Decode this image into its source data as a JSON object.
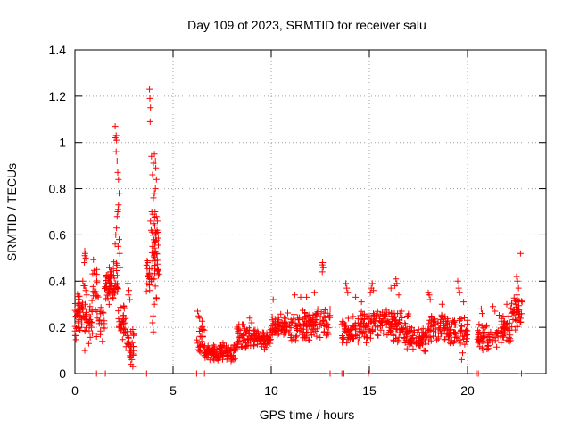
{
  "chart_data": {
    "type": "scatter",
    "title": "Day 109 of 2023, SRMTID for receiver salu",
    "xlabel": "GPS time / hours",
    "ylabel": "SRMTID / TECUs",
    "xlim": [
      0,
      24
    ],
    "ylim": [
      0,
      1.4
    ],
    "x_ticks": [
      0,
      5,
      10,
      15,
      20
    ],
    "x_tick_labels": [
      "0",
      "5",
      "10",
      "15",
      "20"
    ],
    "y_ticks": [
      0,
      0.2,
      0.4,
      0.6,
      0.8,
      1.0,
      1.2,
      1.4
    ],
    "y_tick_labels": [
      "0",
      "0.2",
      "0.4",
      "0.6",
      "0.8",
      "1",
      "1.2",
      "1.4"
    ],
    "grid": true,
    "marker": "+",
    "color": "#ff0000",
    "bands": [
      {
        "start": 0.0,
        "end": 0.3,
        "low": 0.14,
        "high": 0.36,
        "n": 35
      },
      {
        "start": 0.3,
        "end": 0.9,
        "low": 0.15,
        "high": 0.33,
        "n": 45
      },
      {
        "start": 0.9,
        "end": 1.2,
        "low": 0.18,
        "high": 0.5,
        "n": 20
      },
      {
        "start": 1.2,
        "end": 1.5,
        "low": 0.15,
        "high": 0.3,
        "n": 15
      },
      {
        "start": 1.5,
        "end": 1.8,
        "low": 0.28,
        "high": 0.46,
        "n": 30
      },
      {
        "start": 1.8,
        "end": 2.2,
        "low": 0.28,
        "high": 0.5,
        "n": 30
      },
      {
        "start": 2.2,
        "end": 2.6,
        "low": 0.13,
        "high": 0.3,
        "n": 30
      },
      {
        "start": 2.6,
        "end": 3.0,
        "low": 0.05,
        "high": 0.2,
        "n": 30
      },
      {
        "start": 3.6,
        "end": 3.9,
        "low": 0.3,
        "high": 0.5,
        "n": 20
      },
      {
        "start": 3.9,
        "end": 4.3,
        "low": 0.3,
        "high": 0.75,
        "n": 40
      },
      {
        "start": 6.2,
        "end": 6.6,
        "low": 0.07,
        "high": 0.24,
        "n": 25
      },
      {
        "start": 6.6,
        "end": 7.4,
        "low": 0.05,
        "high": 0.13,
        "n": 60
      },
      {
        "start": 7.4,
        "end": 8.2,
        "low": 0.04,
        "high": 0.14,
        "n": 55
      },
      {
        "start": 8.2,
        "end": 8.9,
        "low": 0.1,
        "high": 0.22,
        "n": 50
      },
      {
        "start": 8.9,
        "end": 10.0,
        "low": 0.1,
        "high": 0.2,
        "n": 70
      },
      {
        "start": 10.0,
        "end": 11.0,
        "low": 0.15,
        "high": 0.27,
        "n": 60
      },
      {
        "start": 11.0,
        "end": 12.0,
        "low": 0.13,
        "high": 0.28,
        "n": 60
      },
      {
        "start": 12.0,
        "end": 13.0,
        "low": 0.14,
        "high": 0.3,
        "n": 60
      },
      {
        "start": 13.6,
        "end": 14.4,
        "low": 0.12,
        "high": 0.26,
        "n": 50
      },
      {
        "start": 14.4,
        "end": 15.2,
        "low": 0.12,
        "high": 0.28,
        "n": 50
      },
      {
        "start": 15.2,
        "end": 16.2,
        "low": 0.15,
        "high": 0.3,
        "n": 60
      },
      {
        "start": 16.2,
        "end": 17.0,
        "low": 0.1,
        "high": 0.28,
        "n": 55
      },
      {
        "start": 17.0,
        "end": 18.0,
        "low": 0.08,
        "high": 0.22,
        "n": 60
      },
      {
        "start": 18.0,
        "end": 19.0,
        "low": 0.12,
        "high": 0.28,
        "n": 60
      },
      {
        "start": 19.0,
        "end": 20.0,
        "low": 0.1,
        "high": 0.26,
        "n": 60
      },
      {
        "start": 20.5,
        "end": 21.5,
        "low": 0.09,
        "high": 0.22,
        "n": 55
      },
      {
        "start": 21.5,
        "end": 22.2,
        "low": 0.12,
        "high": 0.26,
        "n": 45
      },
      {
        "start": 22.2,
        "end": 22.8,
        "low": 0.18,
        "high": 0.33,
        "n": 40
      }
    ],
    "peaks": [
      {
        "x": 0.4,
        "y": 0.4
      },
      {
        "x": 0.5,
        "y": 0.38
      },
      {
        "x": 0.55,
        "y": 0.36
      },
      {
        "x": 0.45,
        "y": 0.38
      },
      {
        "x": 0.6,
        "y": 0.34
      },
      {
        "x": 0.5,
        "y": 0.1
      },
      {
        "x": 0.7,
        "y": 0.13
      },
      {
        "x": 1.1,
        "y": 0.16
      },
      {
        "x": 1.4,
        "y": 0.14
      },
      {
        "x": 0.5,
        "y": 0.51
      },
      {
        "x": 0.52,
        "y": 0.52
      },
      {
        "x": 0.55,
        "y": 0.5
      },
      {
        "x": 0.48,
        "y": 0.48
      },
      {
        "x": 0.5,
        "y": 0.53
      },
      {
        "x": 1.7,
        "y": 0.41
      },
      {
        "x": 1.75,
        "y": 0.46
      },
      {
        "x": 1.8,
        "y": 0.44
      },
      {
        "x": 1.85,
        "y": 0.42
      },
      {
        "x": 1.9,
        "y": 0.38
      },
      {
        "x": 1.95,
        "y": 0.35
      },
      {
        "x": 2.05,
        "y": 1.07
      },
      {
        "x": 2.05,
        "y": 1.02
      },
      {
        "x": 2.1,
        "y": 1.03
      },
      {
        "x": 2.12,
        "y": 1.01
      },
      {
        "x": 2.1,
        "y": 0.96
      },
      {
        "x": 2.15,
        "y": 0.92
      },
      {
        "x": 2.18,
        "y": 0.87
      },
      {
        "x": 2.22,
        "y": 0.84
      },
      {
        "x": 2.25,
        "y": 0.78
      },
      {
        "x": 2.22,
        "y": 0.73
      },
      {
        "x": 2.2,
        "y": 0.71
      },
      {
        "x": 2.18,
        "y": 0.7
      },
      {
        "x": 2.15,
        "y": 0.68
      },
      {
        "x": 2.12,
        "y": 0.63
      },
      {
        "x": 2.08,
        "y": 0.6
      },
      {
        "x": 2.05,
        "y": 0.56
      },
      {
        "x": 2.2,
        "y": 0.55
      },
      {
        "x": 2.25,
        "y": 0.58
      },
      {
        "x": 2.28,
        "y": 0.52
      },
      {
        "x": 2.3,
        "y": 0.46
      },
      {
        "x": 2.7,
        "y": 0.39
      },
      {
        "x": 2.75,
        "y": 0.36
      },
      {
        "x": 2.72,
        "y": 0.34
      },
      {
        "x": 2.8,
        "y": 0.32
      },
      {
        "x": 2.9,
        "y": 0.06
      },
      {
        "x": 2.95,
        "y": 0.03
      },
      {
        "x": 2.85,
        "y": 0.04
      },
      {
        "x": 3.8,
        "y": 1.23
      },
      {
        "x": 3.82,
        "y": 1.19
      },
      {
        "x": 3.85,
        "y": 1.15
      },
      {
        "x": 3.83,
        "y": 1.09
      },
      {
        "x": 3.9,
        "y": 0.94
      },
      {
        "x": 3.95,
        "y": 0.86
      },
      {
        "x": 4.0,
        "y": 0.91
      },
      {
        "x": 4.05,
        "y": 0.95
      },
      {
        "x": 4.1,
        "y": 0.92
      },
      {
        "x": 4.12,
        "y": 0.89
      },
      {
        "x": 4.15,
        "y": 0.84
      },
      {
        "x": 4.1,
        "y": 0.8
      },
      {
        "x": 4.05,
        "y": 0.78
      },
      {
        "x": 4.0,
        "y": 0.76
      },
      {
        "x": 4.08,
        "y": 0.7
      },
      {
        "x": 4.15,
        "y": 0.68
      },
      {
        "x": 4.2,
        "y": 0.66
      },
      {
        "x": 4.18,
        "y": 0.62
      },
      {
        "x": 4.1,
        "y": 0.6
      },
      {
        "x": 4.05,
        "y": 0.57
      },
      {
        "x": 3.95,
        "y": 0.55
      },
      {
        "x": 3.88,
        "y": 0.62
      },
      {
        "x": 3.85,
        "y": 0.66
      },
      {
        "x": 3.92,
        "y": 0.7
      },
      {
        "x": 4.15,
        "y": 0.52
      },
      {
        "x": 4.2,
        "y": 0.49
      },
      {
        "x": 4.25,
        "y": 0.45
      },
      {
        "x": 3.95,
        "y": 0.22
      },
      {
        "x": 4.0,
        "y": 0.18
      },
      {
        "x": 3.98,
        "y": 0.25
      },
      {
        "x": 4.05,
        "y": 0.3
      },
      {
        "x": 3.7,
        "y": 0.48
      },
      {
        "x": 6.25,
        "y": 0.27
      },
      {
        "x": 6.3,
        "y": 0.25
      },
      {
        "x": 6.35,
        "y": 0.24
      },
      {
        "x": 8.9,
        "y": 0.24
      },
      {
        "x": 9.0,
        "y": 0.22
      },
      {
        "x": 10.1,
        "y": 0.32
      },
      {
        "x": 11.2,
        "y": 0.34
      },
      {
        "x": 11.5,
        "y": 0.33
      },
      {
        "x": 11.8,
        "y": 0.33
      },
      {
        "x": 12.2,
        "y": 0.35
      },
      {
        "x": 12.6,
        "y": 0.47
      },
      {
        "x": 12.62,
        "y": 0.48
      },
      {
        "x": 12.65,
        "y": 0.46
      },
      {
        "x": 12.6,
        "y": 0.44
      },
      {
        "x": 13.8,
        "y": 0.39
      },
      {
        "x": 13.85,
        "y": 0.37
      },
      {
        "x": 13.9,
        "y": 0.35
      },
      {
        "x": 14.3,
        "y": 0.33
      },
      {
        "x": 14.6,
        "y": 0.31
      },
      {
        "x": 15.1,
        "y": 0.37
      },
      {
        "x": 15.15,
        "y": 0.39
      },
      {
        "x": 15.2,
        "y": 0.36
      },
      {
        "x": 15.05,
        "y": 0.35
      },
      {
        "x": 16.3,
        "y": 0.38
      },
      {
        "x": 16.35,
        "y": 0.41
      },
      {
        "x": 16.4,
        "y": 0.39
      },
      {
        "x": 16.1,
        "y": 0.37
      },
      {
        "x": 16.5,
        "y": 0.34
      },
      {
        "x": 18.0,
        "y": 0.35
      },
      {
        "x": 18.05,
        "y": 0.34
      },
      {
        "x": 18.1,
        "y": 0.32
      },
      {
        "x": 18.7,
        "y": 0.3
      },
      {
        "x": 19.5,
        "y": 0.4
      },
      {
        "x": 19.55,
        "y": 0.37
      },
      {
        "x": 19.6,
        "y": 0.35
      },
      {
        "x": 19.8,
        "y": 0.31
      },
      {
        "x": 19.7,
        "y": 0.06
      },
      {
        "x": 19.75,
        "y": 0.09
      },
      {
        "x": 20.7,
        "y": 0.28
      },
      {
        "x": 20.75,
        "y": 0.26
      },
      {
        "x": 21.3,
        "y": 0.29
      },
      {
        "x": 21.4,
        "y": 0.27
      },
      {
        "x": 22.0,
        "y": 0.3
      },
      {
        "x": 22.5,
        "y": 0.42
      },
      {
        "x": 22.55,
        "y": 0.4
      },
      {
        "x": 22.6,
        "y": 0.37
      },
      {
        "x": 22.52,
        "y": 0.34
      },
      {
        "x": 22.7,
        "y": 0.52
      }
    ],
    "zero_points": [
      1.1,
      1.55,
      3.65,
      6.2,
      6.6,
      13.0,
      13.6,
      13.7,
      14.95,
      20.45,
      20.55,
      22.75
    ]
  }
}
